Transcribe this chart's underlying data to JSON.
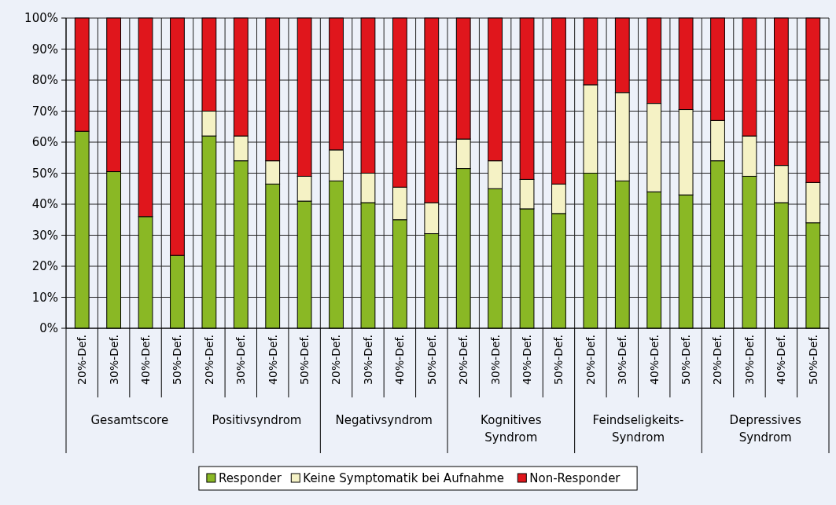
{
  "chart_data": {
    "type": "bar",
    "stacked": true,
    "categories": [
      "20%-Def.",
      "30%-Def.",
      "40%-Def.",
      "50%-Def.",
      "20%-Def.",
      "30%-Def.",
      "40%-Def.",
      "50%-Def.",
      "20%-Def.",
      "30%-Def.",
      "40%-Def.",
      "50%-Def.",
      "20%-Def.",
      "30%-Def.",
      "40%-Def.",
      "50%-Def.",
      "20%-Def.",
      "30%-Def.",
      "40%-Def.",
      "50%-Def.",
      "20%-Def.",
      "30%-Def.",
      "40%-Def.",
      "50%-Def."
    ],
    "series": [
      {
        "name": "Responder",
        "color": "#8ab825",
        "values": [
          63.5,
          50.5,
          36,
          23.5,
          62,
          54,
          46.5,
          41,
          47.5,
          40.5,
          35,
          30.5,
          51.5,
          45,
          38.5,
          37,
          50,
          47.5,
          44,
          43,
          54,
          49,
          40.5,
          34
        ]
      },
      {
        "name": "Keine Symptomatik bei Aufnahme",
        "color": "#f5f2c5",
        "values": [
          0,
          0,
          0,
          0,
          8,
          8,
          7.5,
          8,
          10,
          9.5,
          10.5,
          10,
          9.5,
          9,
          9.5,
          9.5,
          28.5,
          28.5,
          28.5,
          27.5,
          13,
          13,
          12,
          13
        ]
      },
      {
        "name": "Non-Responder",
        "color": "#e0161c",
        "values": [
          36.5,
          49.5,
          64,
          76.5,
          30,
          38,
          46,
          51,
          42.5,
          50,
          54.5,
          59.5,
          39,
          46,
          52,
          53.5,
          21.5,
          24,
          27.5,
          29.5,
          33,
          38,
          47.5,
          53
        ]
      }
    ],
    "annotations": [
      "Gesamtscore",
      "Positivsyndrom",
      "Negativsyndrom",
      "Kognitives Syndrom",
      "Feindseligkeits-Syndrom",
      "Depressives Syndrom"
    ],
    "ylim": [
      0,
      100
    ],
    "yticks": [
      {
        "value": 0,
        "label": "0%"
      },
      {
        "value": 10,
        "label": "10%"
      },
      {
        "value": 20,
        "label": "20%"
      },
      {
        "value": 30,
        "label": "30%"
      },
      {
        "value": 40,
        "label": "40%"
      },
      {
        "value": 50,
        "label": "50%"
      },
      {
        "value": 60,
        "label": "60%"
      },
      {
        "value": 70,
        "label": "70%"
      },
      {
        "value": 80,
        "label": "80%"
      },
      {
        "value": 90,
        "label": "90%"
      },
      {
        "value": 100,
        "label": "100%"
      }
    ],
    "grid": true,
    "legend": "bottom"
  }
}
